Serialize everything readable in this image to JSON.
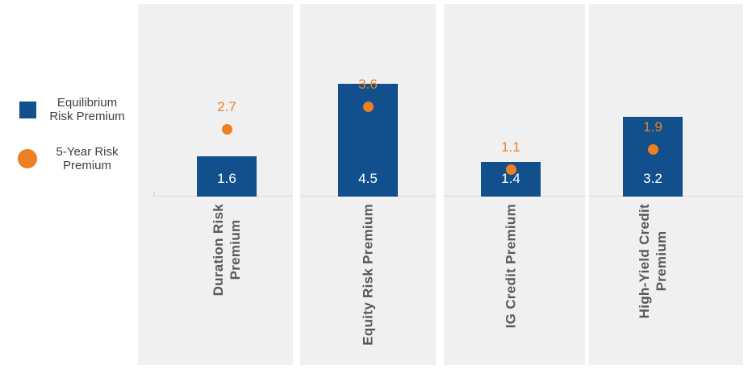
{
  "chart_data": {
    "type": "bar",
    "title": "",
    "xlabel": "",
    "ylabel": "",
    "categories": [
      "Duration Risk\nPremium",
      "Equity Risk Premium",
      "IG Credit Premium",
      "High-Yield Credit\nPremium"
    ],
    "series": [
      {
        "name": "Equilibrium Risk Premium",
        "style": "bar",
        "color": "#11508C",
        "values": [
          1.6,
          4.5,
          1.4,
          3.2
        ],
        "labels": [
          "1.6",
          "4.5",
          "1.4",
          "3.2"
        ]
      },
      {
        "name": "5-Year Risk Premium",
        "style": "point",
        "color": "#EE7F23",
        "values": [
          2.7,
          3.6,
          1.1,
          1.9
        ],
        "labels": [
          "2.7",
          "3.6",
          "1.1",
          "1.9"
        ]
      }
    ],
    "ylim": [
      0,
      7.7
    ],
    "grid": false,
    "legend_position": "left",
    "value_labels": "on",
    "panel_style": "separate light-gray panel per category, rotated category labels below baseline"
  },
  "legend": {
    "items": [
      {
        "label": "Equilibrium\nRisk Premium",
        "swatch": "square",
        "color": "#11508C"
      },
      {
        "label": "5-Year Risk\nPremium",
        "swatch": "circle",
        "color": "#EE7F23"
      }
    ]
  },
  "colors": {
    "bar": "#11508C",
    "point": "#EE7F23",
    "panel_bg": "#F0F0F0",
    "axis_line": "#D9D9D9",
    "category_text": "#595959",
    "bar_label_text": "#FFFFFF",
    "legend_text": "#3F3F3F",
    "page_bg": "#FFFFFF"
  }
}
